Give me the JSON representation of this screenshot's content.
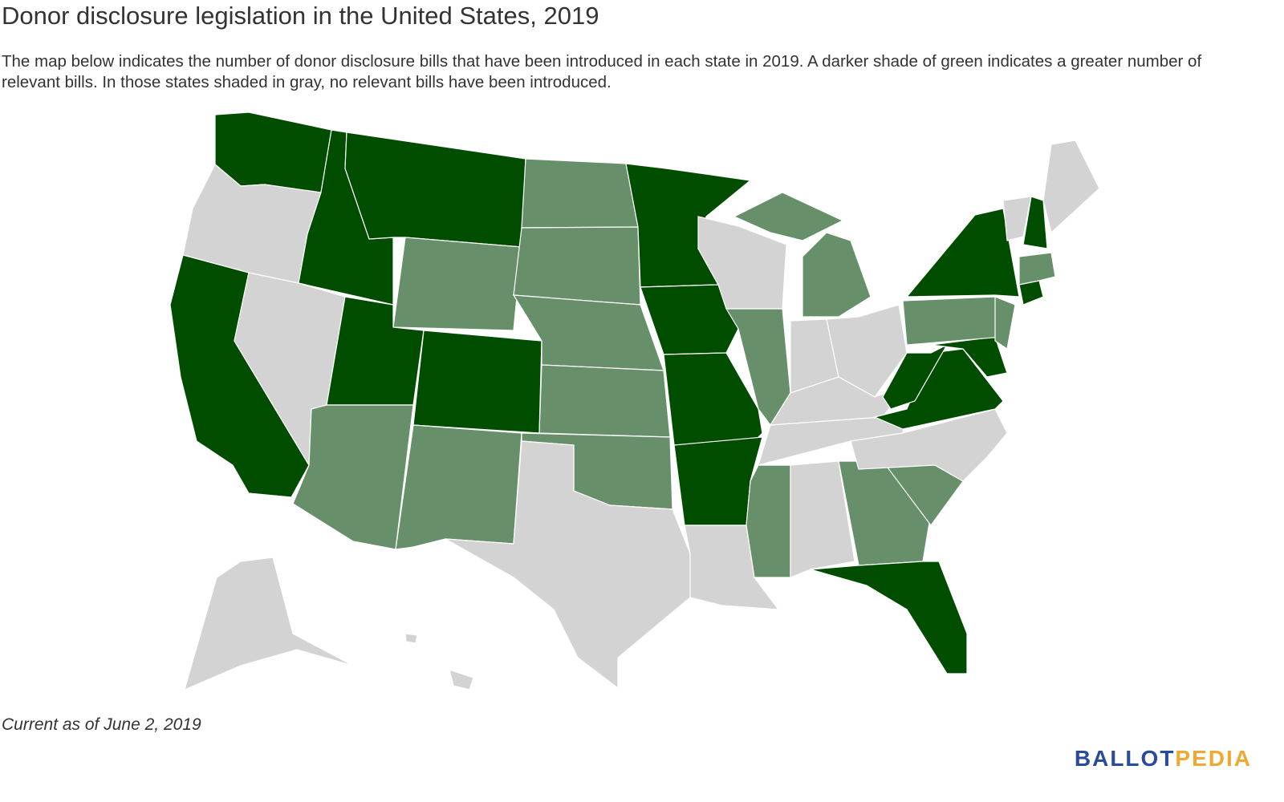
{
  "header": {
    "title": "Donor disclosure legislation in the United States, 2019",
    "description": "The map below indicates the number of donor disclosure bills that have been introduced in each state in 2019. A darker shade of green indicates a greater number of relevant bills. In those states shaded in gray, no relevant bills have been introduced."
  },
  "footnote": "Current as of June 2, 2019",
  "logo": {
    "first": "BALLOT",
    "second": "PEDIA"
  }
}
